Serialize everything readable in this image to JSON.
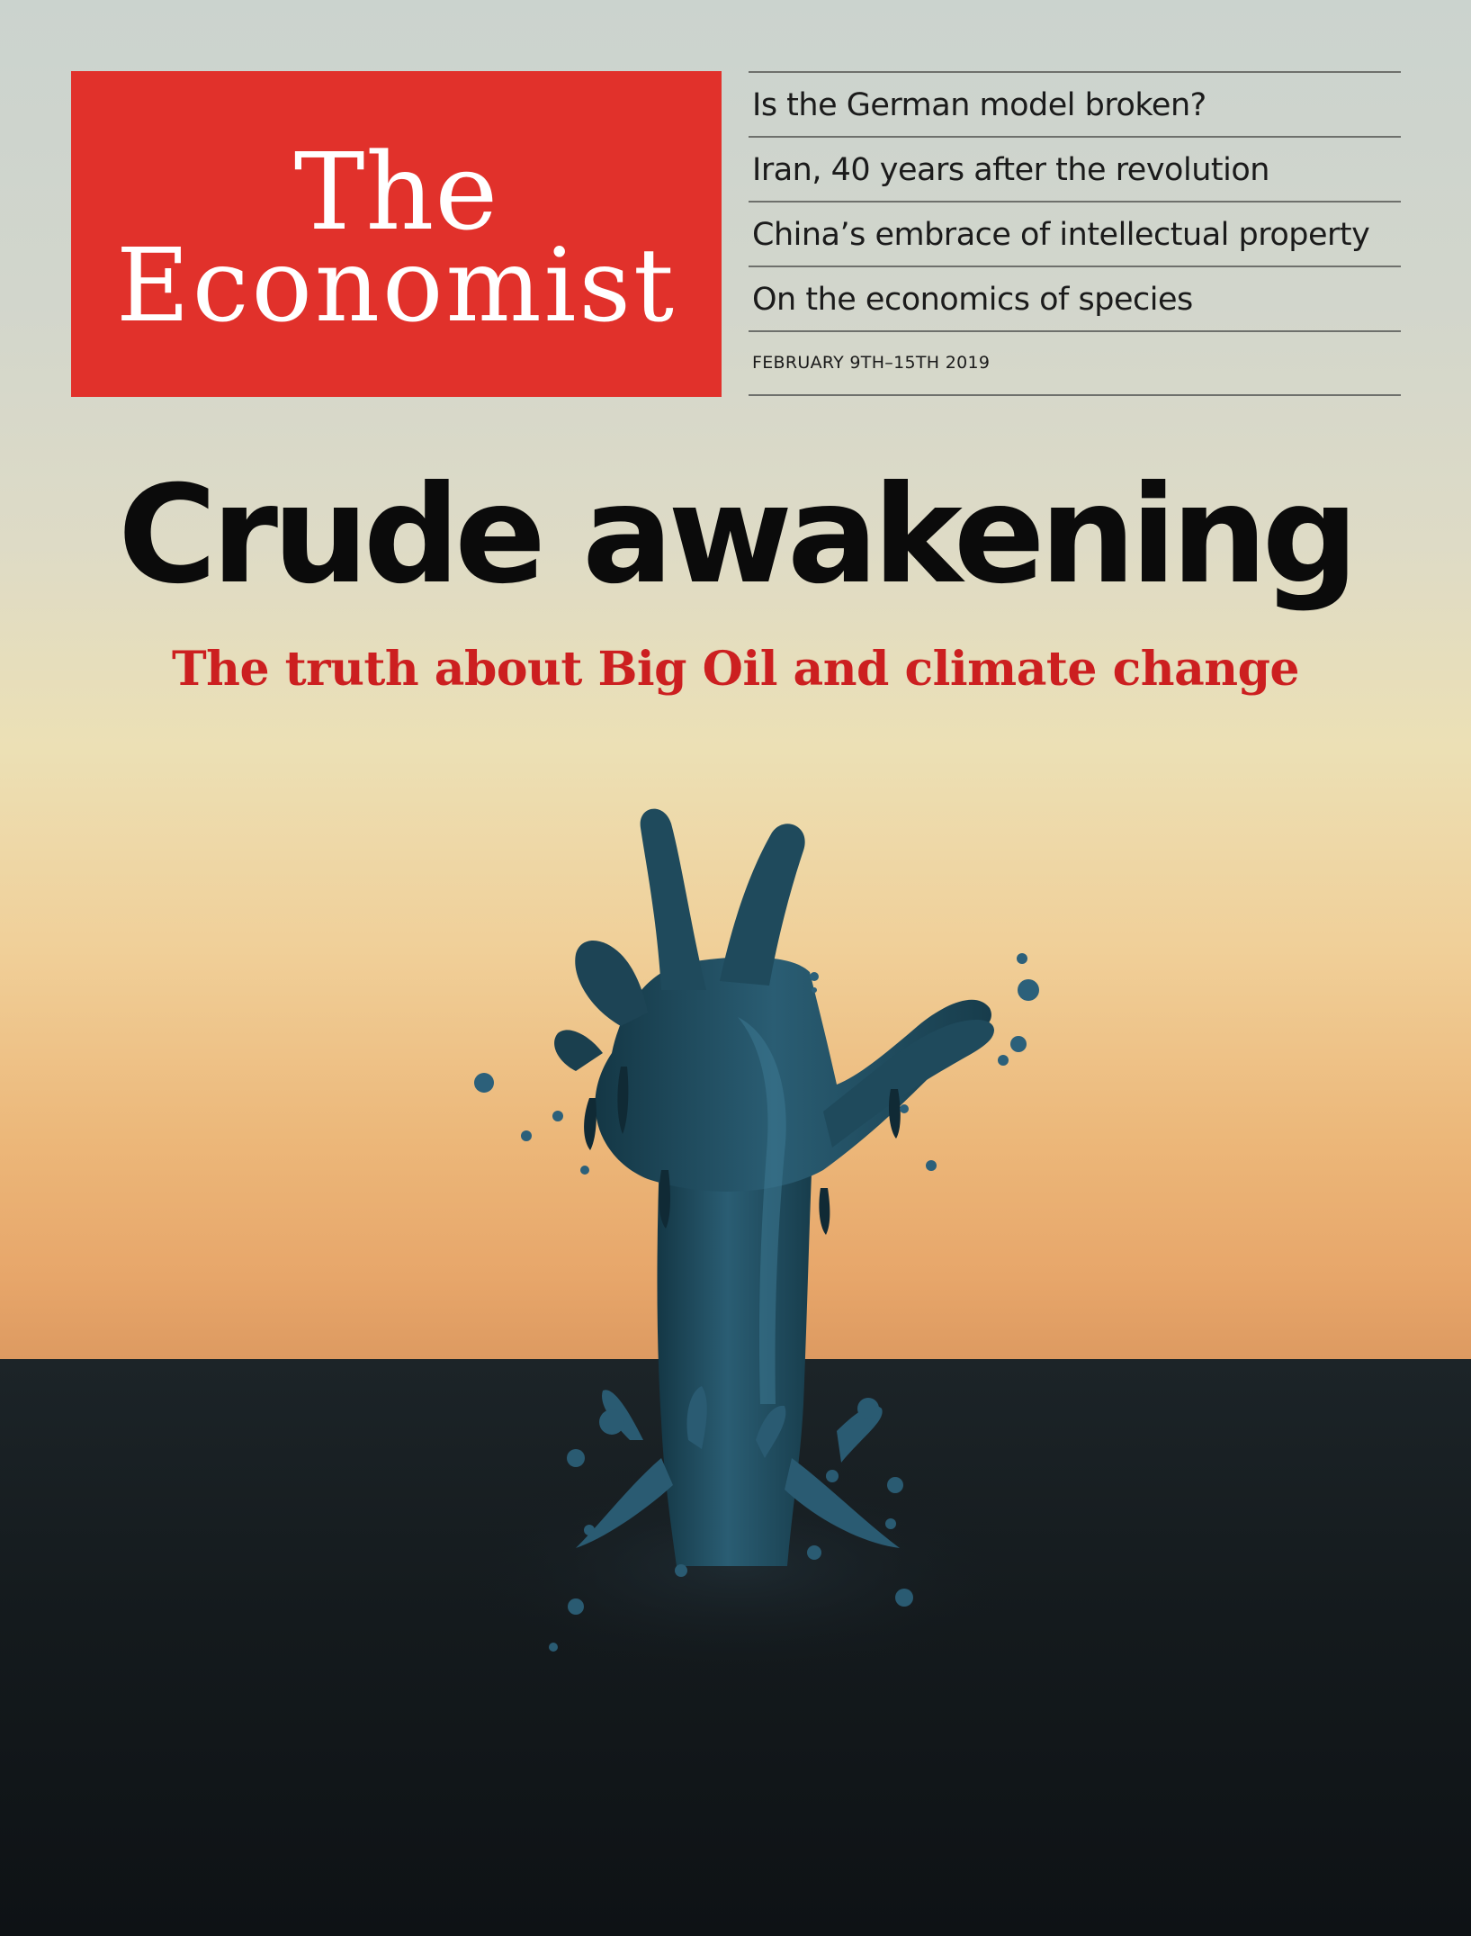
{
  "masthead": {
    "line1": "The",
    "line2": "Economist"
  },
  "teasers": [
    "Is the German model broken?",
    "Iran, 40 years after the revolution",
    "China’s embrace of intellectual property",
    "On the economics of species"
  ],
  "dateline": "FEBRUARY 9TH–15TH 2019",
  "cover_story": {
    "headline": "Crude awakening",
    "subhead": "The truth about Big Oil and climate change"
  },
  "illustration": {
    "icon": "oil-hand-icon",
    "colors": {
      "hand": "#1f4a5c",
      "hand_highlight": "#3d7891",
      "hand_shadow": "#102a35",
      "ground": "#151b1f"
    }
  },
  "colors": {
    "brand_red": "#e1312b",
    "subhead_red": "#cc1f20"
  }
}
